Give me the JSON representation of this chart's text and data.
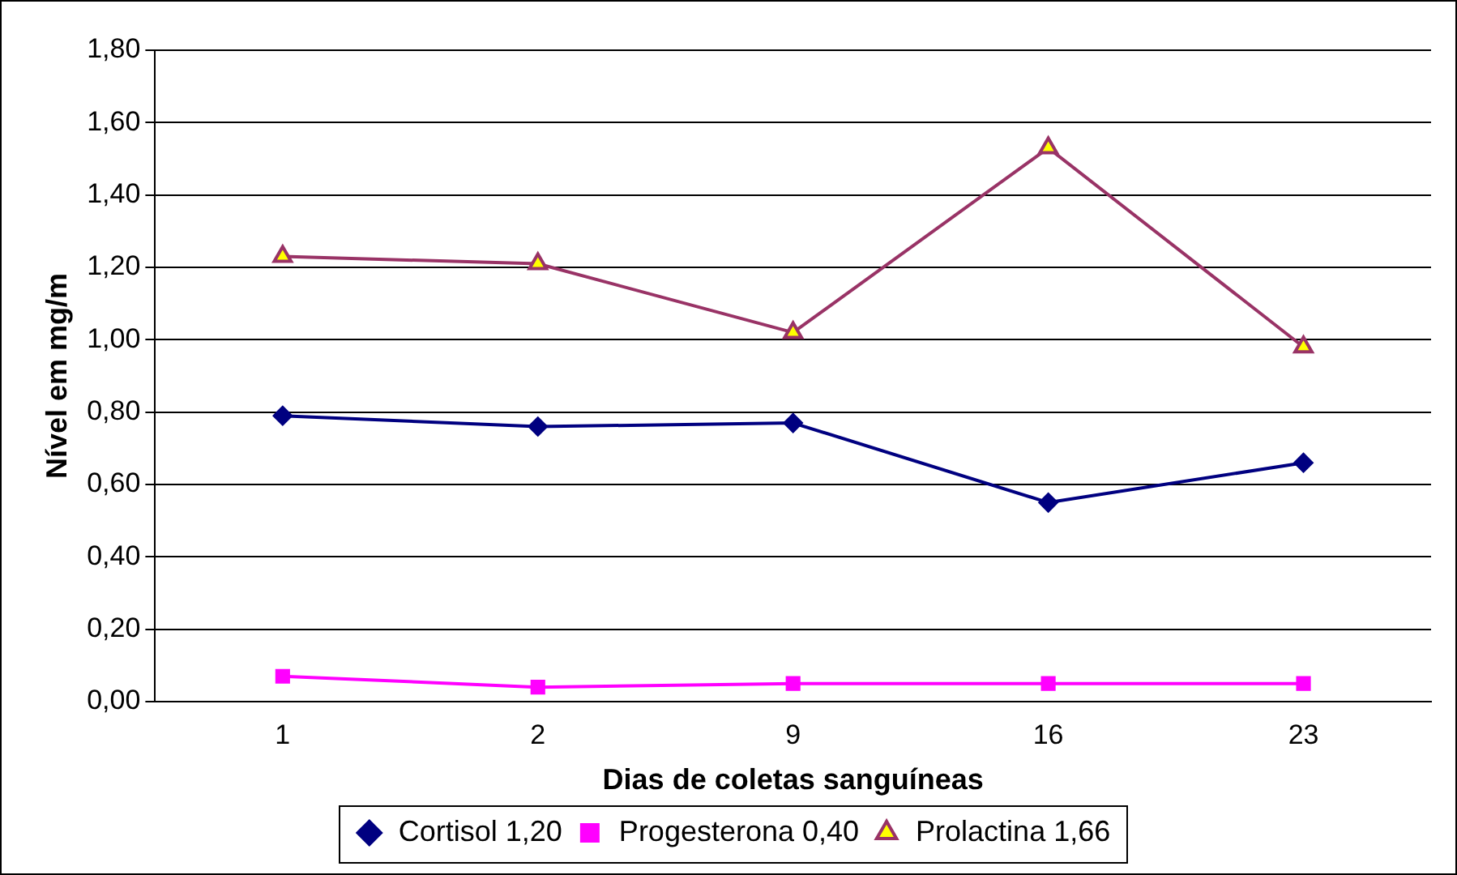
{
  "chart_data": {
    "type": "line",
    "xlabel": "Dias de coletas sanguíneas",
    "ylabel": "Nível em mg/m",
    "categories": [
      "1",
      "2",
      "9",
      "16",
      "23"
    ],
    "series": [
      {
        "name": "Cortisol 1,20",
        "color": "#000080",
        "marker": "diamond",
        "values": [
          0.79,
          0.76,
          0.77,
          0.55,
          0.66
        ]
      },
      {
        "name": "Progesterona 0,40",
        "color": "#ff00ff",
        "marker": "square",
        "values": [
          0.07,
          0.04,
          0.05,
          0.05,
          0.05
        ]
      },
      {
        "name": "Prolactina 1,66",
        "color": "#993366",
        "marker": "triangle",
        "values": [
          1.23,
          1.21,
          1.02,
          1.53,
          0.98
        ]
      }
    ],
    "ylim": [
      0,
      1.8
    ],
    "yticks": [
      {
        "value": 0,
        "label": "0,00"
      },
      {
        "value": 0.2,
        "label": "0,20"
      },
      {
        "value": 0.4,
        "label": "0,40"
      },
      {
        "value": 0.6,
        "label": "0,60"
      },
      {
        "value": 0.8,
        "label": "0,80"
      },
      {
        "value": 1,
        "label": "1,00"
      },
      {
        "value": 1.2,
        "label": "1,20"
      },
      {
        "value": 1.4,
        "label": "1,40"
      },
      {
        "value": 1.6,
        "label": "1,60"
      },
      {
        "value": 1.8,
        "label": "1,80"
      }
    ],
    "grid": "y",
    "legend": "bottom",
    "line_style": "solid"
  }
}
